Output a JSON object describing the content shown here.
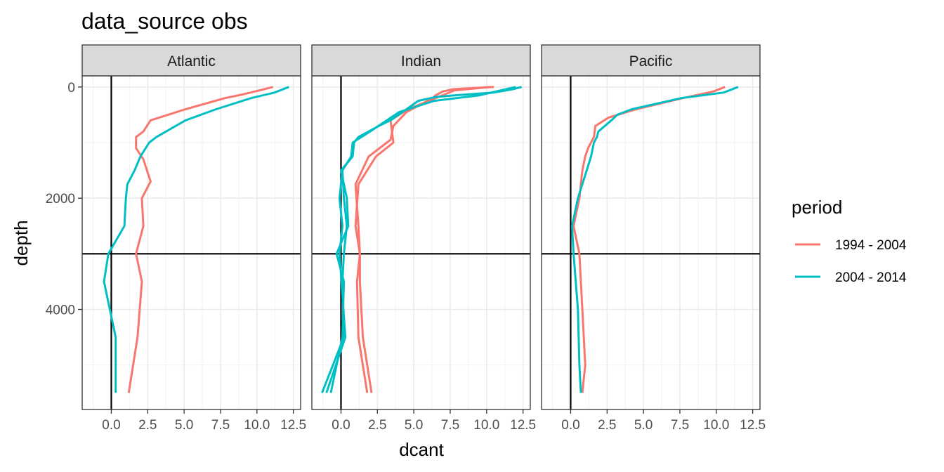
{
  "chart_data": {
    "type": "line",
    "title": "data_source obs",
    "xlabel": "dcant",
    "ylabel": "depth",
    "facets": [
      "Atlantic",
      "Indian",
      "Pacific"
    ],
    "xlim": [
      -2,
      13
    ],
    "ylim": [
      5800,
      -200
    ],
    "y_reversed": true,
    "x_ticks": [
      0,
      2.5,
      5,
      7.5,
      10,
      12.5
    ],
    "x_tick_labels": [
      "0.0",
      "2.5",
      "5.0",
      "7.5",
      "10.0",
      "12.5"
    ],
    "y_ticks": [
      0,
      2000,
      4000
    ],
    "y_tick_labels": [
      "0",
      "2000",
      "4000"
    ],
    "reference_lines": {
      "vertical_x": 0,
      "horizontal_y": 3000
    },
    "grid": true,
    "legend": {
      "title": "period",
      "placement": "right",
      "entries": [
        {
          "label": "1994 - 2004",
          "color": "#F8766D"
        },
        {
          "label": "2004 - 2014",
          "color": "#00BFC4"
        }
      ]
    },
    "panels": [
      {
        "facet": "Atlantic",
        "series": [
          {
            "name": "1994 - 2004",
            "color": "#F8766D",
            "points": [
              [
                11.1,
                0
              ],
              [
                10.2,
                60
              ],
              [
                9.1,
                130
              ],
              [
                7.8,
                200
              ],
              [
                5.1,
                400
              ],
              [
                2.7,
                600
              ],
              [
                2.2,
                800
              ],
              [
                1.7,
                900
              ],
              [
                1.7,
                1100
              ],
              [
                2.2,
                1300
              ],
              [
                2.7,
                1700
              ],
              [
                2.1,
                2000
              ],
              [
                2.2,
                2500
              ],
              [
                1.7,
                3000
              ],
              [
                2.1,
                3500
              ],
              [
                1.8,
                4500
              ],
              [
                1.2,
                5500
              ]
            ]
          },
          {
            "name": "2004 - 2014",
            "color": "#00BFC4",
            "points": [
              [
                12.2,
                0
              ],
              [
                11.2,
                100
              ],
              [
                9.6,
                200
              ],
              [
                7.2,
                400
              ],
              [
                5.1,
                600
              ],
              [
                3.1,
                900
              ],
              [
                2.6,
                1000
              ],
              [
                2.0,
                1250
              ],
              [
                1.6,
                1500
              ],
              [
                1.1,
                1750
              ],
              [
                1.0,
                2000
              ],
              [
                0.9,
                2500
              ],
              [
                -0.2,
                3000
              ],
              [
                -0.5,
                3500
              ],
              [
                0.3,
                4500
              ],
              [
                0.3,
                5500
              ]
            ]
          }
        ]
      },
      {
        "facet": "Indian",
        "series": [
          {
            "name": "1994 - 2004",
            "color": "#F8766D",
            "points": [
              [
                10.5,
                0
              ],
              [
                7.7,
                40
              ],
              [
                7.0,
                80
              ],
              [
                6.5,
                150
              ],
              [
                6.3,
                200
              ],
              [
                4.5,
                450
              ],
              [
                3.6,
                700
              ],
              [
                3.4,
                950
              ],
              [
                1.9,
                1250
              ],
              [
                1.0,
                1750
              ],
              [
                1.2,
                2500
              ],
              [
                1.3,
                3000
              ],
              [
                1.1,
                3500
              ],
              [
                1.2,
                4500
              ],
              [
                1.8,
                5500
              ]
            ]
          },
          {
            "name": "1994 - 2004",
            "color": "#F8766D",
            "points": [
              [
                10.3,
                0
              ],
              [
                7.8,
                60
              ],
              [
                6.5,
                200
              ],
              [
                4.6,
                400
              ],
              [
                3.4,
                600
              ],
              [
                3.6,
                1000
              ],
              [
                2.4,
                1250
              ],
              [
                1.2,
                1750
              ],
              [
                1.0,
                2500
              ],
              [
                1.3,
                3000
              ],
              [
                1.3,
                3500
              ],
              [
                1.5,
                4500
              ],
              [
                2.1,
                5500
              ]
            ]
          },
          {
            "name": "2004 - 2014",
            "color": "#00BFC4",
            "points": [
              [
                12.4,
                0
              ],
              [
                11.8,
                40
              ],
              [
                10.5,
                100
              ],
              [
                7.8,
                150
              ],
              [
                6.5,
                180
              ],
              [
                5.3,
                250
              ],
              [
                4.5,
                400
              ],
              [
                3.4,
                600
              ],
              [
                2.6,
                700
              ],
              [
                1.2,
                900
              ],
              [
                0.9,
                1000
              ],
              [
                0.8,
                1250
              ],
              [
                0,
                1500
              ],
              [
                0.4,
                2000
              ],
              [
                0.5,
                2500
              ],
              [
                -0.3,
                3000
              ],
              [
                0.2,
                3500
              ],
              [
                0.1,
                4500
              ],
              [
                -0.7,
                5500
              ]
            ]
          },
          {
            "name": "2004 - 2014",
            "color": "#00BFC4",
            "points": [
              [
                12.0,
                0
              ],
              [
                9.5,
                150
              ],
              [
                6.4,
                250
              ],
              [
                4.0,
                450
              ],
              [
                2.0,
                800
              ],
              [
                0.8,
                1000
              ],
              [
                0.7,
                1250
              ],
              [
                0.1,
                1500
              ],
              [
                0.2,
                2000
              ],
              [
                0.4,
                2500
              ],
              [
                0.2,
                3000
              ],
              [
                0.1,
                3500
              ],
              [
                0.2,
                4500
              ],
              [
                -1.3,
                5500
              ]
            ]
          },
          {
            "name": "2004 - 2014",
            "color": "#00BFC4",
            "points": [
              [
                0.1,
                1500
              ],
              [
                -0.1,
                2000
              ],
              [
                0.1,
                2500
              ],
              [
                -0.1,
                3000
              ],
              [
                0.3,
                4500
              ],
              [
                -1.0,
                5500
              ]
            ]
          }
        ]
      },
      {
        "facet": "Pacific",
        "series": [
          {
            "name": "1994 - 2004",
            "color": "#F8766D",
            "points": [
              [
                10.6,
                0
              ],
              [
                9.8,
                80
              ],
              [
                7.7,
                200
              ],
              [
                4.5,
                400
              ],
              [
                2.6,
                550
              ],
              [
                1.7,
                700
              ],
              [
                1.6,
                900
              ],
              [
                1.2,
                1100
              ],
              [
                1.0,
                1250
              ],
              [
                0.8,
                1500
              ],
              [
                0.6,
                2000
              ],
              [
                0.2,
                2500
              ],
              [
                0.6,
                3000
              ],
              [
                0.8,
                4000
              ],
              [
                1.0,
                5000
              ],
              [
                0.8,
                5500
              ]
            ]
          },
          {
            "name": "2004 - 2014",
            "color": "#00BFC4",
            "points": [
              [
                11.5,
                0
              ],
              [
                10.5,
                100
              ],
              [
                7.6,
                200
              ],
              [
                4.2,
                400
              ],
              [
                3.2,
                500
              ],
              [
                2.8,
                600
              ],
              [
                1.9,
                800
              ],
              [
                1.8,
                900
              ],
              [
                1.6,
                1000
              ],
              [
                1.4,
                1250
              ],
              [
                1.1,
                1500
              ],
              [
                0.5,
                2000
              ],
              [
                0.1,
                2500
              ],
              [
                0.2,
                3000
              ],
              [
                0.5,
                4000
              ],
              [
                0.6,
                5000
              ],
              [
                0.7,
                5500
              ]
            ]
          }
        ]
      }
    ]
  }
}
